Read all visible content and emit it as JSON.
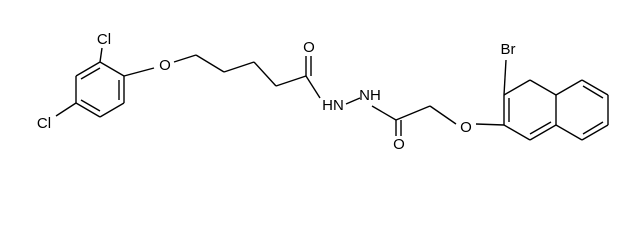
{
  "atoms": [
    {
      "label": "Cl"
    },
    {
      "label": "Cl"
    },
    {
      "label": "O"
    },
    {
      "label": "O"
    },
    {
      "label": "HN"
    },
    {
      "label": "NH"
    },
    {
      "label": "O"
    },
    {
      "label": "O"
    },
    {
      "label": "Br"
    }
  ]
}
